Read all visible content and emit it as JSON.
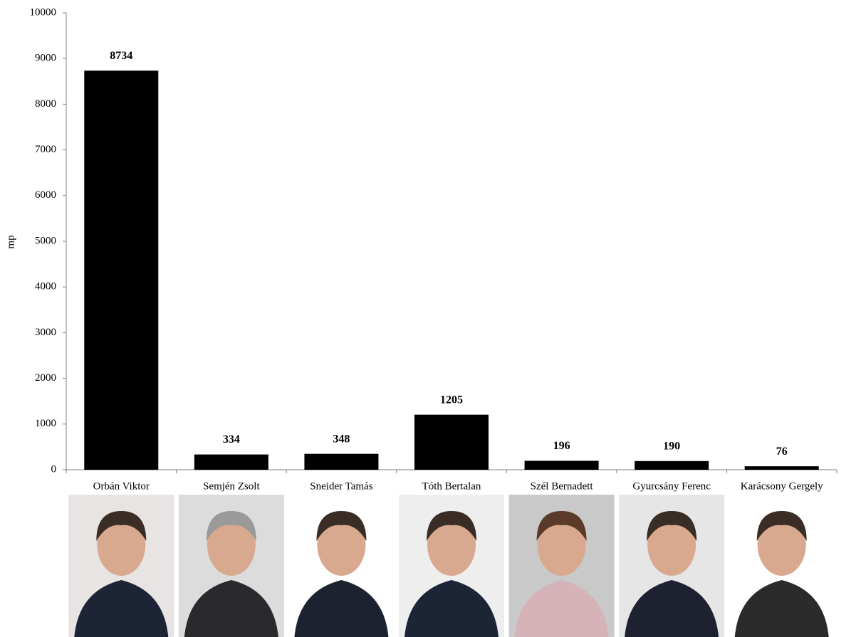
{
  "chart_data": {
    "type": "bar",
    "y_label": "mp",
    "categories": [
      "Orbán Viktor",
      "Semjén Zsolt",
      "Sneider Tamás",
      "Tóth Bertalan",
      "Szél Bernadett",
      "Gyurcsány Ferenc",
      "Karácsony Gergely"
    ],
    "values": [
      8734,
      334,
      348,
      1205,
      196,
      190,
      76
    ],
    "color": "#000000",
    "ylim": [
      0,
      10000
    ],
    "yticks": [
      0,
      1000,
      2000,
      3000,
      4000,
      5000,
      6000,
      7000,
      8000,
      9000,
      10000
    ],
    "grid": false
  }
}
